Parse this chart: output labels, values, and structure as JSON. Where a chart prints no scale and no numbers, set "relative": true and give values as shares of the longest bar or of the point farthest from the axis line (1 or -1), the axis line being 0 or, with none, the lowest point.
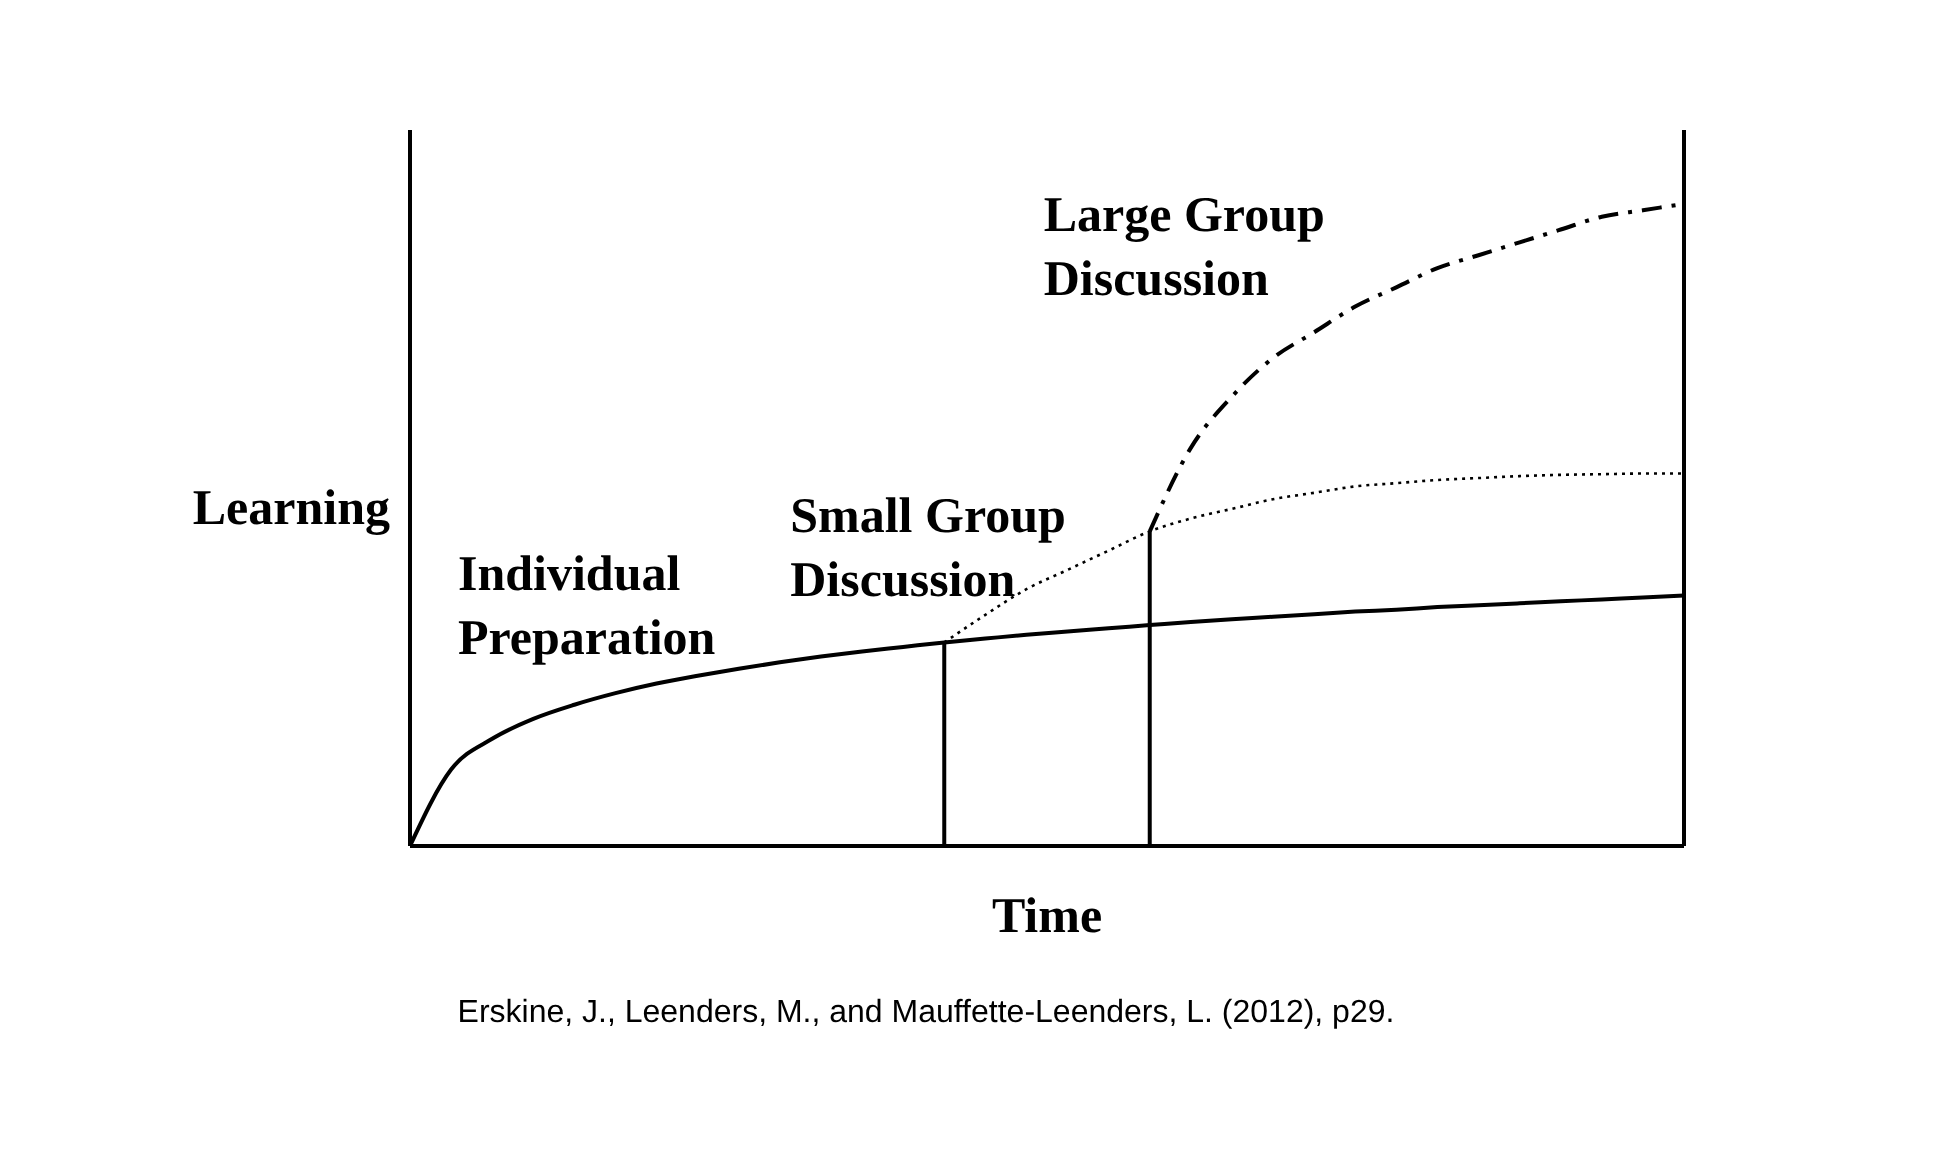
{
  "chart_data": {
    "type": "line",
    "relative": true,
    "xlabel": "Time",
    "ylabel": "Learning",
    "categories": [
      null,
      null,
      null,
      null,
      null,
      null,
      null,
      null,
      null,
      null,
      null,
      null,
      null,
      null,
      null,
      null,
      null,
      null,
      null,
      null,
      null,
      null,
      null,
      null,
      null,
      null,
      null,
      null,
      null,
      null,
      null,
      null
    ],
    "series": [
      {
        "name": "Individual Preparation",
        "color": "#000000",
        "line_style": "solid",
        "values": [
          0,
          0.119,
          0.167,
          0.198,
          0.22,
          0.238,
          0.253,
          0.265,
          0.276,
          0.286,
          0.295,
          0.303,
          0.31,
          0.317,
          0.323,
          0.329,
          0.334,
          0.339,
          0.344,
          0.349,
          0.353,
          0.357,
          0.361,
          0.365,
          0.368,
          0.372,
          0.375,
          0.378,
          0.381,
          0.384,
          0.387,
          0.39
        ]
      },
      {
        "name": "Small Group Discussion",
        "color": "#000000",
        "line_style": "dotted",
        "values": [
          null,
          null,
          null,
          null,
          null,
          null,
          null,
          null,
          null,
          null,
          null,
          null,
          null,
          0.317,
          0.36,
          0.4,
          0.43,
          0.46,
          0.49,
          0.51,
          0.525,
          0.54,
          0.55,
          0.56,
          0.565,
          0.57,
          0.573,
          0.576,
          0.578,
          0.579,
          0.58,
          0.58
        ]
      },
      {
        "name": "Large Group Discussion",
        "color": "#000000",
        "line_style": "dashdot",
        "values": [
          null,
          null,
          null,
          null,
          null,
          null,
          null,
          null,
          null,
          null,
          null,
          null,
          null,
          null,
          null,
          null,
          null,
          null,
          0.49,
          0.62,
          0.7,
          0.76,
          0.8,
          0.84,
          0.87,
          0.9,
          0.92,
          0.94,
          0.96,
          0.98,
          0.99,
          1.0
        ]
      }
    ],
    "annotations": [
      "Erskine, J., Leenders, M., and Mauffette-Leenders, L. (2012), p29."
    ]
  }
}
